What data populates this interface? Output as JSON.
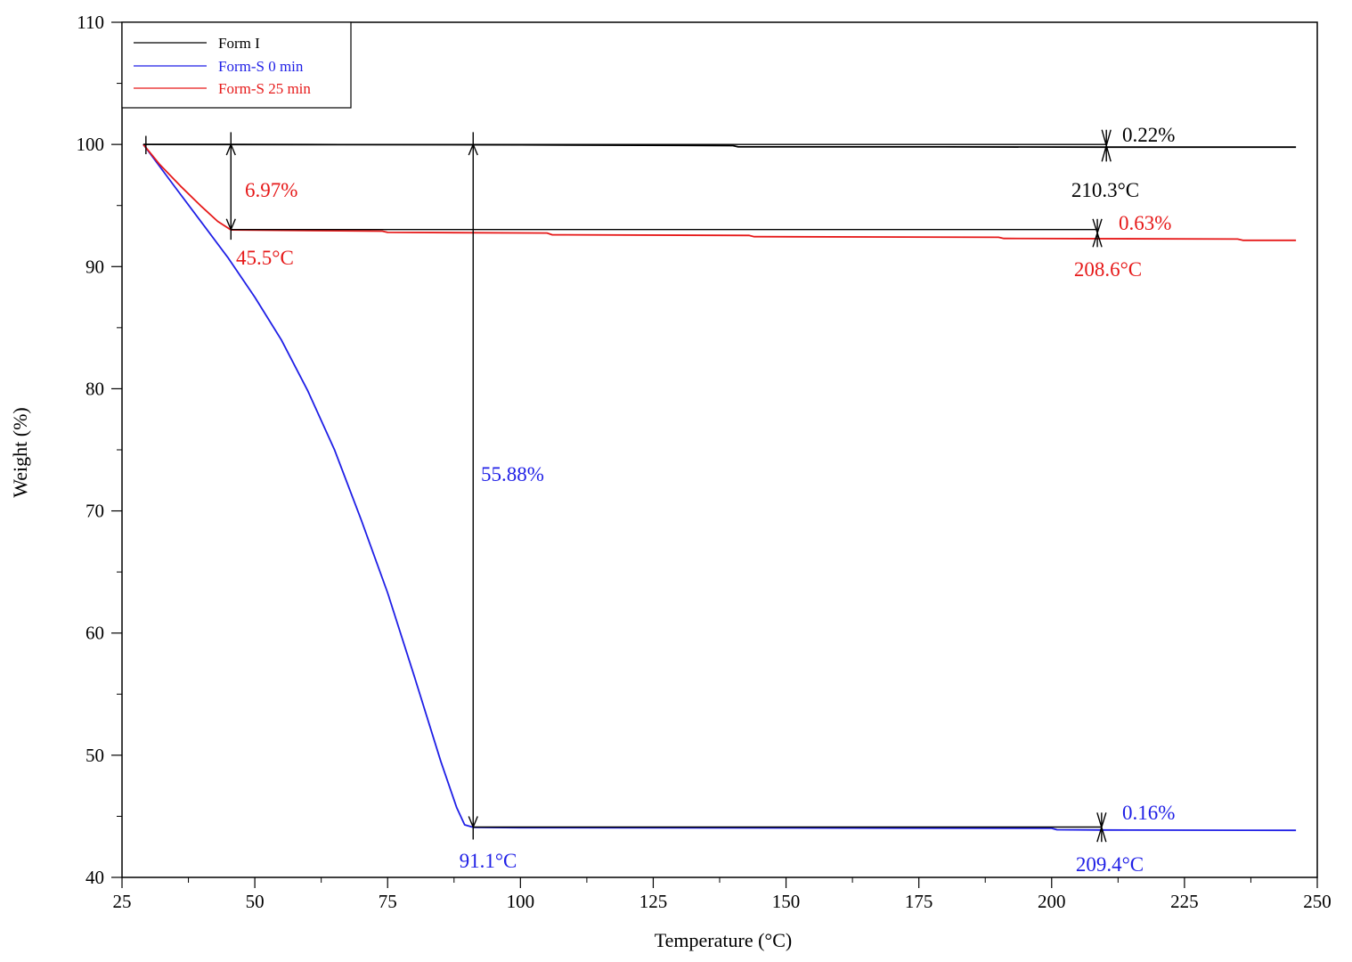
{
  "chart_data": {
    "type": "line",
    "xlabel": "Temperature (°C)",
    "ylabel": "Weight (%)",
    "xlim": [
      25,
      250
    ],
    "ylim": [
      40,
      110
    ],
    "x_ticks": [
      "25",
      "50",
      "75",
      "100",
      "125",
      "150",
      "175",
      "200",
      "225",
      "250"
    ],
    "y_ticks": [
      "40",
      "50",
      "60",
      "70",
      "80",
      "90",
      "100",
      "110"
    ],
    "legend_position": "top-left",
    "series": [
      {
        "name": "Form I",
        "color": "#000000",
        "points": [
          [
            29,
            100
          ],
          [
            60,
            99.99
          ],
          [
            100,
            99.97
          ],
          [
            140,
            99.9
          ],
          [
            141,
            99.8
          ],
          [
            180,
            99.8
          ],
          [
            210,
            99.78
          ],
          [
            246,
            99.78
          ]
        ]
      },
      {
        "name": "Form-S 0 min",
        "color": "#1f1fe6",
        "points": [
          [
            29,
            100
          ],
          [
            35,
            96.5
          ],
          [
            40,
            93.6
          ],
          [
            45,
            90.7
          ],
          [
            50,
            87.5
          ],
          [
            55,
            84
          ],
          [
            60,
            79.8
          ],
          [
            65,
            75
          ],
          [
            70,
            69.3
          ],
          [
            75,
            63.3
          ],
          [
            80,
            56.5
          ],
          [
            85,
            49.5
          ],
          [
            88,
            45.7
          ],
          [
            89.5,
            44.3
          ],
          [
            91.1,
            44.1
          ],
          [
            100,
            44.07
          ],
          [
            150,
            44.05
          ],
          [
            200,
            44.02
          ],
          [
            201,
            43.9
          ],
          [
            209.4,
            43.88
          ],
          [
            246,
            43.85
          ]
        ]
      },
      {
        "name": "Form-S 25 min",
        "color": "#e61919",
        "points": [
          [
            29,
            100
          ],
          [
            32,
            98.4
          ],
          [
            36,
            96.6
          ],
          [
            40,
            94.9
          ],
          [
            43,
            93.7
          ],
          [
            45.5,
            93.0
          ],
          [
            60,
            92.95
          ],
          [
            74,
            92.9
          ],
          [
            75,
            92.8
          ],
          [
            105,
            92.75
          ],
          [
            106,
            92.6
          ],
          [
            143,
            92.55
          ],
          [
            144,
            92.45
          ],
          [
            190,
            92.4
          ],
          [
            191,
            92.3
          ],
          [
            235,
            92.25
          ],
          [
            236,
            92.15
          ],
          [
            246,
            92.15
          ]
        ]
      }
    ],
    "annotations": [
      {
        "text": "0.22%",
        "color": "#000000"
      },
      {
        "text": "210.3°C",
        "color": "#000000"
      },
      {
        "text": "6.97%",
        "color": "#e61919"
      },
      {
        "text": "45.5°C",
        "color": "#e61919"
      },
      {
        "text": "0.63%",
        "color": "#e61919"
      },
      {
        "text": "208.6°C",
        "color": "#e61919"
      },
      {
        "text": "55.88%",
        "color": "#1f1fe6"
      },
      {
        "text": "91.1°C",
        "color": "#1f1fe6"
      },
      {
        "text": "0.16%",
        "color": "#1f1fe6"
      },
      {
        "text": "209.4°C",
        "color": "#1f1fe6"
      }
    ]
  }
}
